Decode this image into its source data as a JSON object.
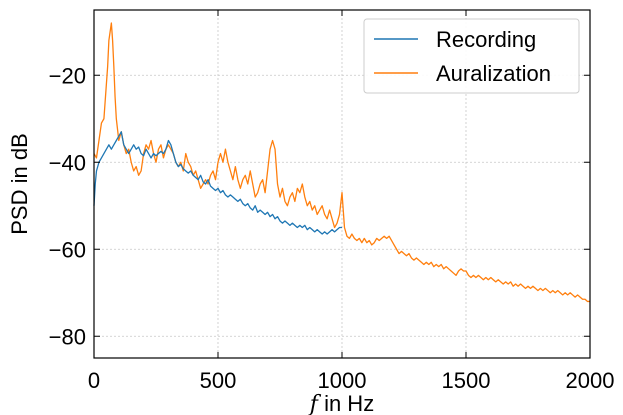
{
  "chart_data": {
    "type": "line",
    "xlabel_var": "f",
    "xlabel_rest": " in Hz",
    "ylabel": "PSD in dB",
    "xlim": [
      0,
      2000
    ],
    "ylim": [
      -85,
      -5
    ],
    "xticks": [
      0,
      500,
      1000,
      1500,
      2000
    ],
    "yticks": [
      -80,
      -60,
      -40,
      -20
    ],
    "ytick_labels": [
      "−80",
      "−60",
      "−40",
      "−20"
    ],
    "grid": true,
    "legend_position": "top-right",
    "series": [
      {
        "name": "Recording",
        "color": "#1f77b4",
        "points": [
          [
            0,
            -50
          ],
          [
            5,
            -45
          ],
          [
            10,
            -42
          ],
          [
            20,
            -40
          ],
          [
            30,
            -39
          ],
          [
            40,
            -38
          ],
          [
            50,
            -37
          ],
          [
            60,
            -36
          ],
          [
            70,
            -37
          ],
          [
            80,
            -36
          ],
          [
            90,
            -35
          ],
          [
            100,
            -34
          ],
          [
            110,
            -33
          ],
          [
            120,
            -36
          ],
          [
            130,
            -37
          ],
          [
            140,
            -38
          ],
          [
            150,
            -37
          ],
          [
            160,
            -36
          ],
          [
            170,
            -37
          ],
          [
            180,
            -36.5
          ],
          [
            190,
            -38
          ],
          [
            200,
            -38.5
          ],
          [
            210,
            -37
          ],
          [
            220,
            -38
          ],
          [
            230,
            -39
          ],
          [
            240,
            -38
          ],
          [
            250,
            -38.5
          ],
          [
            260,
            -38
          ],
          [
            270,
            -37.5
          ],
          [
            280,
            -38
          ],
          [
            290,
            -37
          ],
          [
            300,
            -35
          ],
          [
            310,
            -36
          ],
          [
            320,
            -38
          ],
          [
            330,
            -40
          ],
          [
            340,
            -41
          ],
          [
            350,
            -40.5
          ],
          [
            360,
            -41.5
          ],
          [
            370,
            -42
          ],
          [
            380,
            -42.5
          ],
          [
            390,
            -42
          ],
          [
            400,
            -43
          ],
          [
            410,
            -43.5
          ],
          [
            420,
            -44
          ],
          [
            430,
            -43
          ],
          [
            440,
            -44.5
          ],
          [
            450,
            -45
          ],
          [
            460,
            -44
          ],
          [
            470,
            -45.5
          ],
          [
            480,
            -46
          ],
          [
            490,
            -46.5
          ],
          [
            500,
            -46
          ],
          [
            510,
            -47
          ],
          [
            520,
            -46.5
          ],
          [
            530,
            -47.5
          ],
          [
            540,
            -48
          ],
          [
            550,
            -47.5
          ],
          [
            560,
            -48
          ],
          [
            570,
            -48.5
          ],
          [
            580,
            -49
          ],
          [
            590,
            -48.5
          ],
          [
            600,
            -49.5
          ],
          [
            610,
            -50
          ],
          [
            620,
            -49.5
          ],
          [
            630,
            -50.5
          ],
          [
            640,
            -51
          ],
          [
            650,
            -50
          ],
          [
            660,
            -51.5
          ],
          [
            670,
            -51
          ],
          [
            680,
            -51.5
          ],
          [
            690,
            -52
          ],
          [
            700,
            -51.5
          ],
          [
            710,
            -52.5
          ],
          [
            720,
            -52
          ],
          [
            730,
            -53
          ],
          [
            740,
            -52.5
          ],
          [
            750,
            -53.5
          ],
          [
            760,
            -54
          ],
          [
            770,
            -53.5
          ],
          [
            780,
            -54
          ],
          [
            790,
            -54.5
          ],
          [
            800,
            -54
          ],
          [
            810,
            -54.5
          ],
          [
            820,
            -55
          ],
          [
            830,
            -54.5
          ],
          [
            840,
            -55
          ],
          [
            850,
            -54.5
          ],
          [
            860,
            -55.5
          ],
          [
            870,
            -55
          ],
          [
            880,
            -55.5
          ],
          [
            890,
            -56
          ],
          [
            900,
            -55.5
          ],
          [
            910,
            -56
          ],
          [
            920,
            -56.5
          ],
          [
            930,
            -56
          ],
          [
            940,
            -56.5
          ],
          [
            950,
            -56
          ],
          [
            960,
            -55.5
          ],
          [
            970,
            -56
          ],
          [
            980,
            -55.5
          ],
          [
            990,
            -55
          ],
          [
            1000,
            -55
          ]
        ]
      },
      {
        "name": "Auralization",
        "color": "#ff7f0e",
        "points": [
          [
            0,
            -38
          ],
          [
            10,
            -39
          ],
          [
            20,
            -35
          ],
          [
            30,
            -31
          ],
          [
            40,
            -30
          ],
          [
            50,
            -22
          ],
          [
            55,
            -18
          ],
          [
            60,
            -12
          ],
          [
            65,
            -10
          ],
          [
            70,
            -8
          ],
          [
            75,
            -12
          ],
          [
            80,
            -18
          ],
          [
            85,
            -25
          ],
          [
            90,
            -30
          ],
          [
            100,
            -35
          ],
          [
            110,
            -33
          ],
          [
            120,
            -36
          ],
          [
            130,
            -38
          ],
          [
            140,
            -37
          ],
          [
            150,
            -40
          ],
          [
            160,
            -42
          ],
          [
            170,
            -41
          ],
          [
            180,
            -43
          ],
          [
            190,
            -42
          ],
          [
            200,
            -38
          ],
          [
            210,
            -36
          ],
          [
            220,
            -37
          ],
          [
            230,
            -35
          ],
          [
            240,
            -38
          ],
          [
            250,
            -40
          ],
          [
            260,
            -37
          ],
          [
            270,
            -36
          ],
          [
            280,
            -39
          ],
          [
            290,
            -37
          ],
          [
            300,
            -36
          ],
          [
            310,
            -37
          ],
          [
            320,
            -38
          ],
          [
            330,
            -40
          ],
          [
            340,
            -41
          ],
          [
            350,
            -40
          ],
          [
            360,
            -42
          ],
          [
            370,
            -38
          ],
          [
            380,
            -40
          ],
          [
            390,
            -41
          ],
          [
            400,
            -43
          ],
          [
            410,
            -42
          ],
          [
            420,
            -44
          ],
          [
            430,
            -46
          ],
          [
            440,
            -45
          ],
          [
            450,
            -44
          ],
          [
            460,
            -45
          ],
          [
            470,
            -43
          ],
          [
            480,
            -42
          ],
          [
            490,
            -44
          ],
          [
            500,
            -40
          ],
          [
            510,
            -38
          ],
          [
            520,
            -40
          ],
          [
            530,
            -37
          ],
          [
            540,
            -40
          ],
          [
            550,
            -42
          ],
          [
            560,
            -44
          ],
          [
            570,
            -41
          ],
          [
            580,
            -44
          ],
          [
            590,
            -46
          ],
          [
            600,
            -44
          ],
          [
            610,
            -43
          ],
          [
            620,
            -45
          ],
          [
            630,
            -42
          ],
          [
            640,
            -45
          ],
          [
            650,
            -48
          ],
          [
            660,
            -47
          ],
          [
            670,
            -45
          ],
          [
            680,
            -44
          ],
          [
            690,
            -47
          ],
          [
            700,
            -42
          ],
          [
            710,
            -37
          ],
          [
            720,
            -35
          ],
          [
            730,
            -37
          ],
          [
            740,
            -45
          ],
          [
            750,
            -48
          ],
          [
            760,
            -46
          ],
          [
            770,
            -49
          ],
          [
            780,
            -50
          ],
          [
            790,
            -48
          ],
          [
            800,
            -47
          ],
          [
            810,
            -49
          ],
          [
            820,
            -46
          ],
          [
            830,
            -47
          ],
          [
            840,
            -45
          ],
          [
            850,
            -48
          ],
          [
            860,
            -50
          ],
          [
            870,
            -49
          ],
          [
            880,
            -51
          ],
          [
            890,
            -50
          ],
          [
            900,
            -52
          ],
          [
            910,
            -51
          ],
          [
            920,
            -50
          ],
          [
            930,
            -52
          ],
          [
            940,
            -53
          ],
          [
            950,
            -51
          ],
          [
            960,
            -53
          ],
          [
            970,
            -55
          ],
          [
            980,
            -54
          ],
          [
            990,
            -52
          ],
          [
            1000,
            -47
          ],
          [
            1005,
            -51
          ],
          [
            1010,
            -55
          ],
          [
            1020,
            -57
          ],
          [
            1030,
            -57.5
          ],
          [
            1040,
            -56.5
          ],
          [
            1050,
            -57.5
          ],
          [
            1060,
            -58
          ],
          [
            1070,
            -57.5
          ],
          [
            1080,
            -58.5
          ],
          [
            1090,
            -57.5
          ],
          [
            1100,
            -58.5
          ],
          [
            1110,
            -58
          ],
          [
            1120,
            -59
          ],
          [
            1130,
            -58.5
          ],
          [
            1140,
            -57.5
          ],
          [
            1150,
            -58
          ],
          [
            1160,
            -57.5
          ],
          [
            1170,
            -57
          ],
          [
            1180,
            -57.5
          ],
          [
            1190,
            -57
          ],
          [
            1200,
            -58
          ],
          [
            1210,
            -59
          ],
          [
            1220,
            -60
          ],
          [
            1230,
            -61
          ],
          [
            1240,
            -60.5
          ],
          [
            1250,
            -61
          ],
          [
            1260,
            -61.5
          ],
          [
            1270,
            -61
          ],
          [
            1280,
            -62
          ],
          [
            1290,
            -62.5
          ],
          [
            1300,
            -62
          ],
          [
            1310,
            -62.5
          ],
          [
            1320,
            -63
          ],
          [
            1330,
            -63.5
          ],
          [
            1340,
            -63
          ],
          [
            1350,
            -63.5
          ],
          [
            1360,
            -63
          ],
          [
            1370,
            -64
          ],
          [
            1380,
            -63.5
          ],
          [
            1390,
            -64
          ],
          [
            1400,
            -63.5
          ],
          [
            1410,
            -64.5
          ],
          [
            1420,
            -64
          ],
          [
            1430,
            -64.5
          ],
          [
            1440,
            -65
          ],
          [
            1450,
            -65.5
          ],
          [
            1460,
            -66
          ],
          [
            1470,
            -65
          ],
          [
            1480,
            -64.5
          ],
          [
            1490,
            -65
          ],
          [
            1500,
            -65
          ],
          [
            1510,
            -66
          ],
          [
            1520,
            -66.5
          ],
          [
            1530,
            -66
          ],
          [
            1540,
            -66.5
          ],
          [
            1550,
            -66
          ],
          [
            1560,
            -66.5
          ],
          [
            1570,
            -67
          ],
          [
            1580,
            -66.5
          ],
          [
            1590,
            -67
          ],
          [
            1600,
            -66.5
          ],
          [
            1610,
            -67
          ],
          [
            1620,
            -67.5
          ],
          [
            1630,
            -67
          ],
          [
            1640,
            -67.5
          ],
          [
            1650,
            -68
          ],
          [
            1660,
            -67.5
          ],
          [
            1670,
            -68
          ],
          [
            1680,
            -67.5
          ],
          [
            1690,
            -68.5
          ],
          [
            1700,
            -68
          ],
          [
            1710,
            -68.5
          ],
          [
            1720,
            -68
          ],
          [
            1730,
            -68.5
          ],
          [
            1740,
            -69
          ],
          [
            1750,
            -68.5
          ],
          [
            1760,
            -69
          ],
          [
            1770,
            -68.5
          ],
          [
            1780,
            -69
          ],
          [
            1790,
            -69.5
          ],
          [
            1800,
            -69
          ],
          [
            1810,
            -69.5
          ],
          [
            1820,
            -69
          ],
          [
            1830,
            -69.5
          ],
          [
            1840,
            -70
          ],
          [
            1850,
            -69.5
          ],
          [
            1860,
            -70
          ],
          [
            1870,
            -69.5
          ],
          [
            1880,
            -70
          ],
          [
            1890,
            -70.5
          ],
          [
            1900,
            -70
          ],
          [
            1910,
            -70.5
          ],
          [
            1920,
            -70
          ],
          [
            1930,
            -70.5
          ],
          [
            1940,
            -71
          ],
          [
            1950,
            -70.5
          ],
          [
            1960,
            -71
          ],
          [
            1970,
            -71.5
          ],
          [
            1980,
            -71.5
          ],
          [
            1990,
            -72
          ],
          [
            2000,
            -72
          ]
        ]
      }
    ]
  }
}
